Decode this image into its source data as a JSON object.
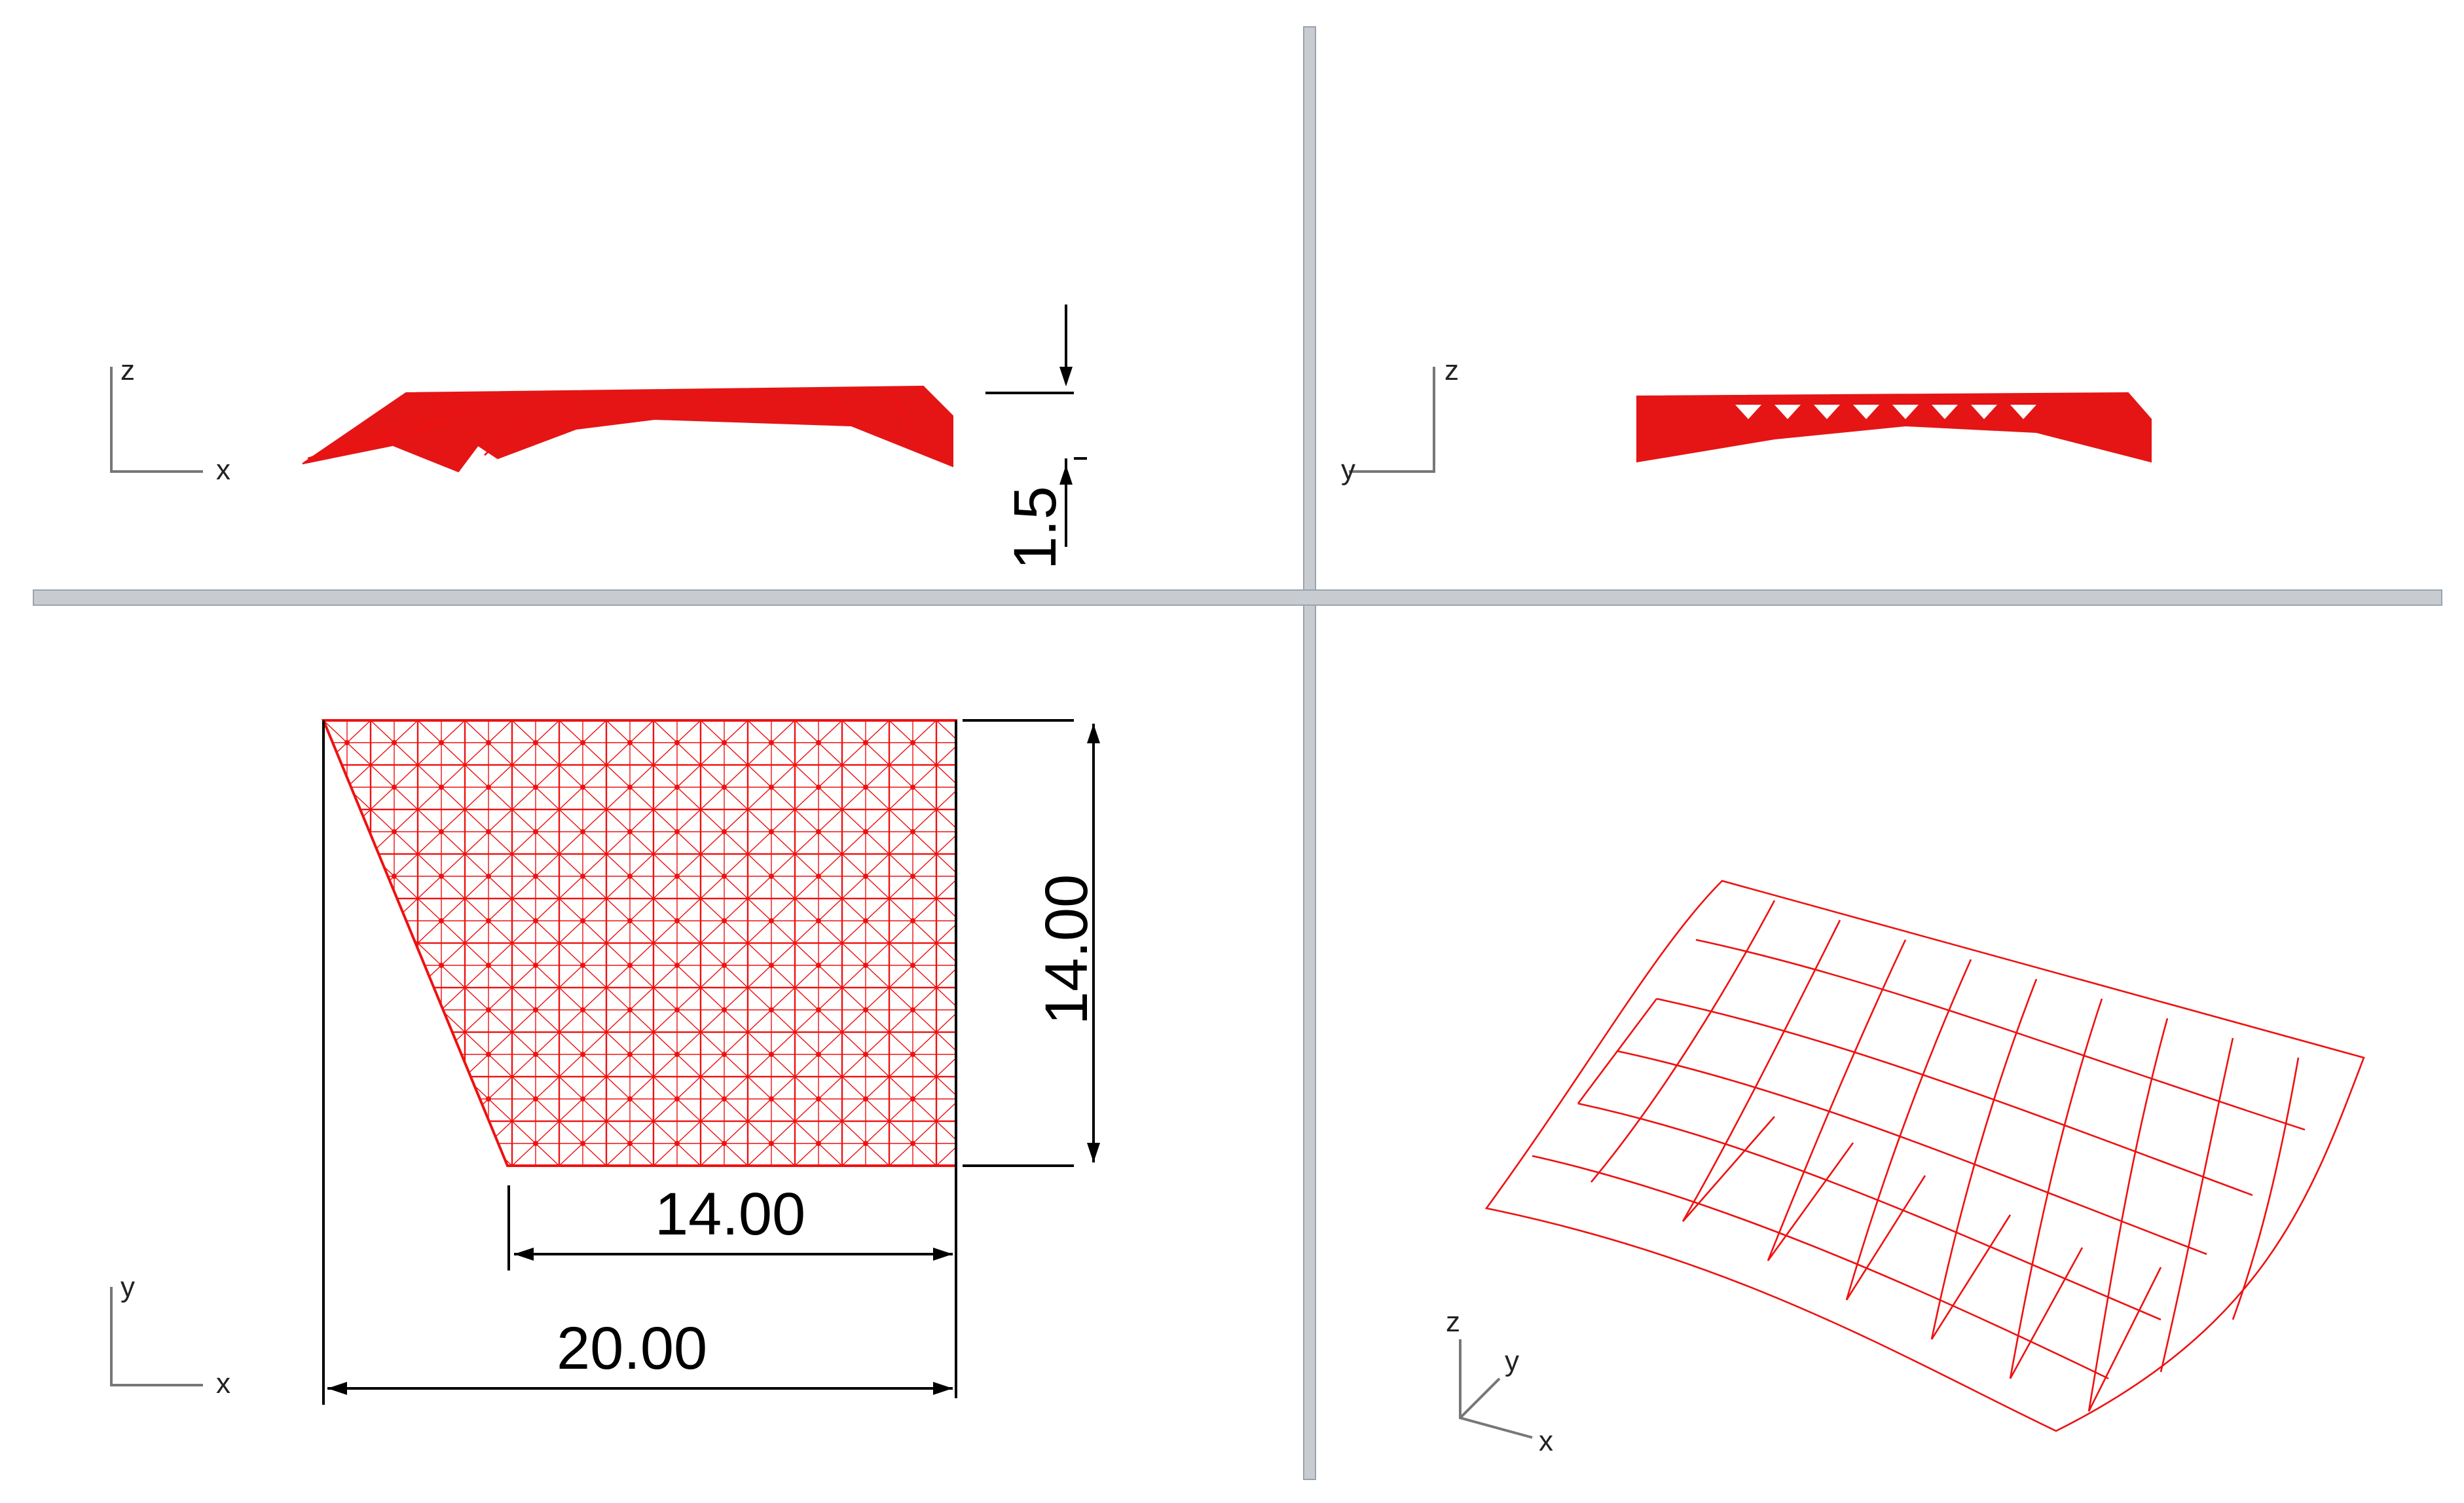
{
  "viewports": {
    "front": {
      "axes": {
        "vertical": "z",
        "horizontal": "x"
      },
      "dimension": "1.5"
    },
    "right": {
      "axes": {
        "vertical": "z",
        "horizontal": "y"
      }
    },
    "top": {
      "axes": {
        "vertical": "y",
        "horizontal": "x"
      },
      "dim_height": "14.00",
      "dim_bottom_width": "14.00",
      "dim_total_width": "20.00"
    },
    "perspective": {
      "axes": {
        "z": "z",
        "y": "y",
        "x": "x"
      }
    }
  },
  "colors": {
    "mesh": "#ee1111",
    "divider": "#c8ccd0",
    "background": "#ffffff"
  }
}
